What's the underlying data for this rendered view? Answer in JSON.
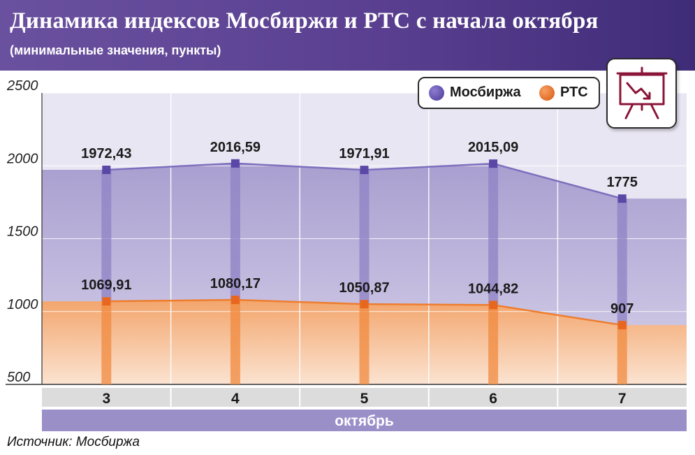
{
  "header": {
    "title": "Динамика индексов Мосбиржи и РТС с начала октября",
    "subtitle": "(минимальные значения, пункты)"
  },
  "legend": {
    "items": [
      {
        "label": "Мосбиржа",
        "color": "#5b47a6"
      },
      {
        "label": "РТС",
        "color": "#e8671f"
      }
    ]
  },
  "icon": {
    "name": "presentation-chart-down-icon",
    "color": "#8a1538"
  },
  "source": "Источник: Мосбиржа",
  "chart_data": {
    "type": "line",
    "categories": [
      "3",
      "4",
      "5",
      "6",
      "7"
    ],
    "xlabel": "октябрь",
    "ylim": [
      500,
      2500
    ],
    "yticks": [
      500,
      1000,
      1500,
      2000,
      2500
    ],
    "grid": true,
    "legend_position": "top-right",
    "series": [
      {
        "name": "Мосбиржа",
        "values": [
          1972.43,
          2016.59,
          1971.91,
          2015.09,
          1775
        ],
        "labels": [
          "1972,43",
          "2016,59",
          "1971,91",
          "2015,09",
          "1775"
        ],
        "color": "#5b47a6"
      },
      {
        "name": "РТС",
        "values": [
          1069.91,
          1080.17,
          1050.87,
          1044.82,
          907
        ],
        "labels": [
          "1069,91",
          "1080,17",
          "1050,87",
          "1044,82",
          "907"
        ],
        "color": "#e8671f"
      }
    ]
  }
}
